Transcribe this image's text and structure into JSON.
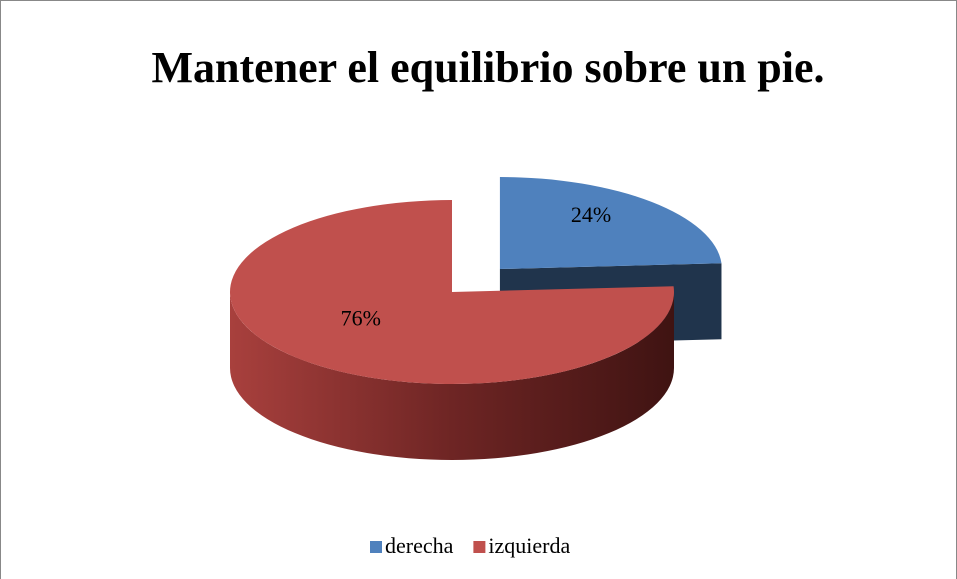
{
  "chart_data": {
    "type": "pie",
    "title": "Mantener el equilibrio sobre un pie.",
    "categories": [
      "derecha",
      "izquierda"
    ],
    "values": [
      24,
      76
    ],
    "value_labels": [
      "24%",
      "76%"
    ],
    "colors": [
      "#4f81bd",
      "#c0504d"
    ],
    "legend": "bottom"
  }
}
